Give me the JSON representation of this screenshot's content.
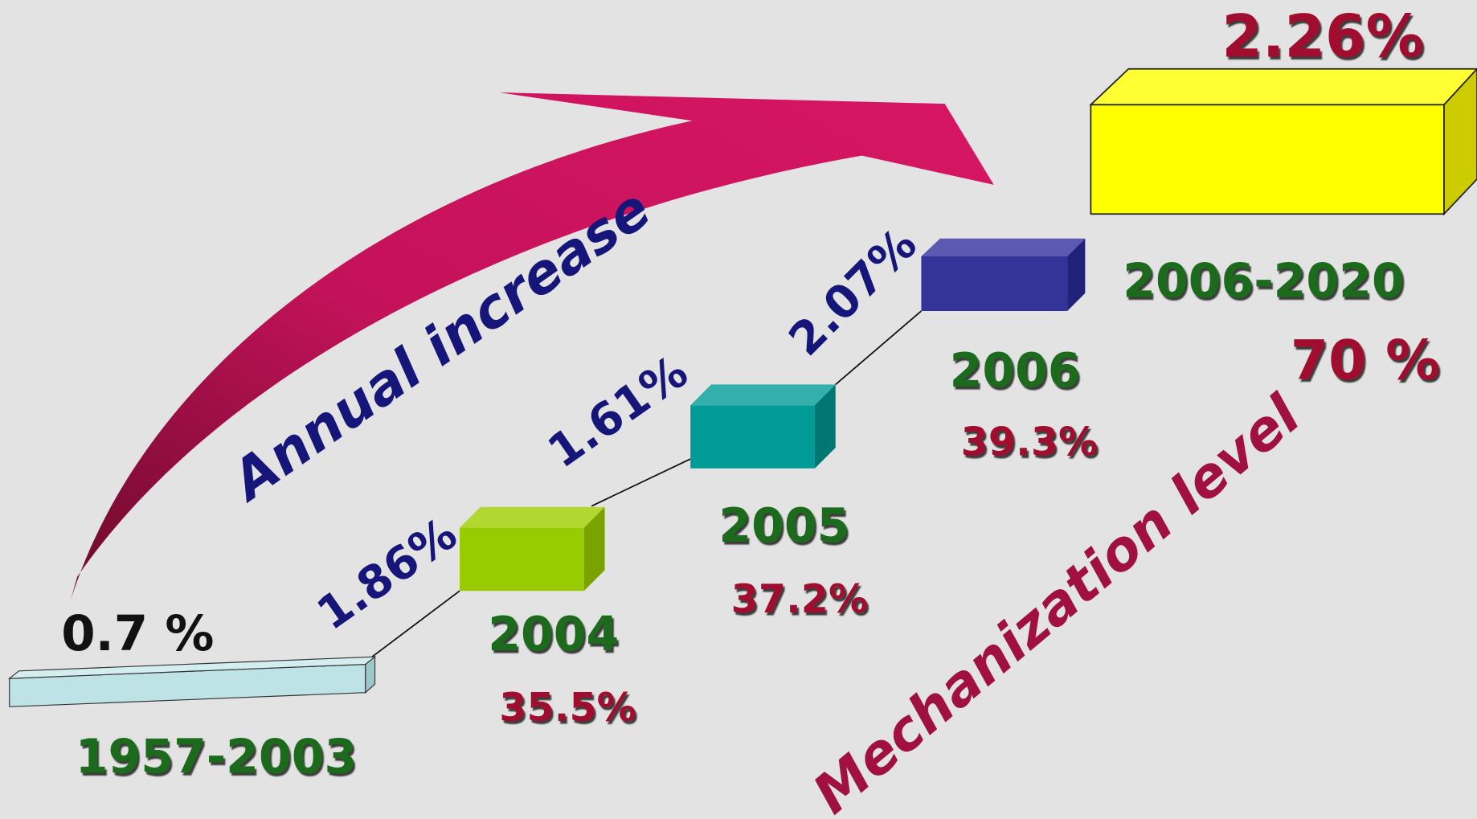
{
  "labels": {
    "annual_increase": "Annual increase",
    "mechanization_level": "Mechanization level"
  },
  "stages": [
    {
      "period": "1957-2003",
      "level": "0.7 %"
    },
    {
      "period": "2004",
      "level": "35.5%",
      "annual_increase": "1.86%"
    },
    {
      "period": "2005",
      "level": "37.2%",
      "annual_increase": "1.61%"
    },
    {
      "period": "2006",
      "level": "39.3%",
      "annual_increase": "2.07%"
    },
    {
      "period": "2006-2020",
      "level": "70 %",
      "annual_increase": "2.26%"
    }
  ]
}
